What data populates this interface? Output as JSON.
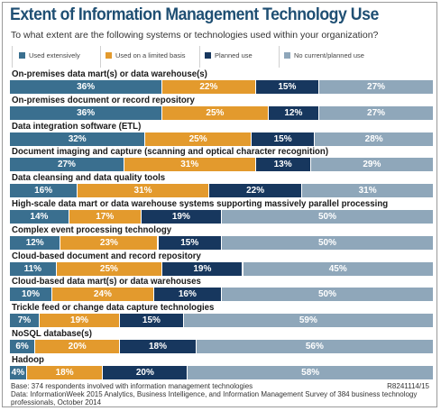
{
  "title": "Extent of Information Management Technology Use",
  "subtitle": "To what extent are the following systems or technologies used within your organization?",
  "legend": [
    {
      "label": "Used extensively",
      "color": "#3a6f8f"
    },
    {
      "label": "Used on a limited basis",
      "color": "#e39a2d"
    },
    {
      "label": "Planned use",
      "color": "#17375e"
    },
    {
      "label": "No current/planned use",
      "color": "#8fa7ba"
    }
  ],
  "footer": {
    "base": "Base: 374 respondents involved with information management technologies",
    "data_line1": "Data: InformationWeek 2015 Analytics, Business Intelligence, and Information Management Survey of 384 business technology",
    "data_line2": "professionals, October 2014",
    "code": "R8241114/15"
  },
  "chart_data": {
    "type": "bar",
    "orientation": "horizontal",
    "stacked": true,
    "unit": "%",
    "title": "Extent of Information Management Technology Use",
    "subtitle": "To what extent are the following systems or technologies used within your organization?",
    "legend_position": "top",
    "categories": [
      "On-premises data mart(s) or data warehouse(s)",
      "On-premises document or record repository",
      "Data integration software (ETL)",
      "Document imaging and capture (scanning and optical character recognition)",
      "Data cleansing and data quality tools",
      "High-scale data mart or data warehouse systems supporting massively parallel processing",
      "Complex event processing technology",
      "Cloud-based document and record repository",
      "Cloud-based data mart(s) or data warehouses",
      "Trickle feed or change data capture technologies",
      "NoSQL database(s)",
      "Hadoop"
    ],
    "series": [
      {
        "name": "Used extensively",
        "values": [
          36,
          36,
          32,
          27,
          16,
          14,
          12,
          11,
          10,
          7,
          6,
          4
        ]
      },
      {
        "name": "Used on a limited basis",
        "values": [
          22,
          25,
          25,
          31,
          31,
          17,
          23,
          25,
          24,
          19,
          20,
          18
        ]
      },
      {
        "name": "Planned use",
        "values": [
          15,
          12,
          15,
          13,
          22,
          19,
          15,
          19,
          16,
          15,
          18,
          20
        ]
      },
      {
        "name": "No current/planned use",
        "values": [
          27,
          27,
          28,
          29,
          31,
          50,
          50,
          45,
          50,
          59,
          56,
          58
        ]
      }
    ]
  }
}
